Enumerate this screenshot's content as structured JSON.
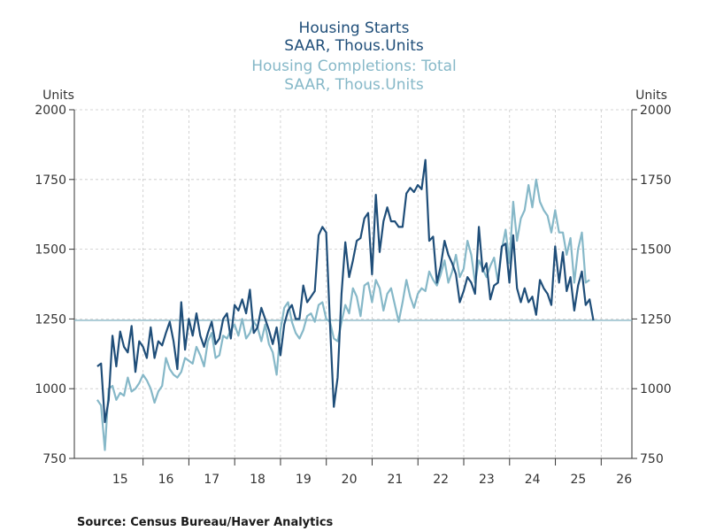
{
  "chart_data": {
    "type": "line",
    "title": "Housing Starts",
    "subtitle": "SAAR, Thous.Units",
    "title2": "Housing Completions: Total",
    "subtitle2": "SAAR, Thous.Units",
    "ylabel_left": "Units",
    "ylabel_right": "Units",
    "ylim": [
      750,
      2000
    ],
    "yticks": [
      750,
      1000,
      1250,
      1500,
      1750,
      2000
    ],
    "xlim": [
      2014.5,
      2026.67
    ],
    "xtick_labels": [
      "15",
      "16",
      "17",
      "18",
      "19",
      "20",
      "21",
      "22",
      "23",
      "24",
      "25",
      "26"
    ],
    "reference_line": 1245,
    "grid": true,
    "source": "Source:  Census Bureau/Haver Analytics",
    "colors": {
      "starts": "#1f4e79",
      "completions": "#86b8c8",
      "reference": "#7fb0c0"
    },
    "series": [
      {
        "name": "Housing Starts",
        "color": "#1f4e79",
        "start": 2015.0,
        "step": 0.0833,
        "values": [
          1080,
          1090,
          880,
          960,
          1190,
          1080,
          1205,
          1150,
          1130,
          1225,
          1060,
          1170,
          1150,
          1110,
          1220,
          1110,
          1170,
          1155,
          1200,
          1240,
          1170,
          1070,
          1310,
          1140,
          1250,
          1190,
          1270,
          1190,
          1150,
          1200,
          1240,
          1160,
          1180,
          1250,
          1270,
          1180,
          1300,
          1280,
          1320,
          1270,
          1355,
          1200,
          1220,
          1290,
          1250,
          1210,
          1160,
          1220,
          1120,
          1230,
          1280,
          1300,
          1250,
          1250,
          1370,
          1310,
          1330,
          1350,
          1550,
          1580,
          1560,
          1230,
          935,
          1040,
          1340,
          1525,
          1400,
          1460,
          1530,
          1540,
          1610,
          1630,
          1410,
          1695,
          1490,
          1600,
          1650,
          1600,
          1600,
          1580,
          1580,
          1700,
          1720,
          1705,
          1730,
          1715,
          1820,
          1530,
          1545,
          1380,
          1440,
          1530,
          1480,
          1450,
          1410,
          1310,
          1350,
          1400,
          1380,
          1340,
          1580,
          1420,
          1450,
          1320,
          1370,
          1380,
          1510,
          1520,
          1380,
          1550,
          1360,
          1310,
          1360,
          1310,
          1330,
          1265,
          1390,
          1360,
          1340,
          1300,
          1510,
          1380,
          1490,
          1350,
          1400,
          1280,
          1370,
          1420,
          1300,
          1320,
          1245
        ]
      },
      {
        "name": "Housing Completions: Total",
        "color": "#86b8c8",
        "start": 2015.0,
        "step": 0.0833,
        "values": [
          960,
          940,
          780,
          1000,
          1010,
          960,
          985,
          975,
          1040,
          990,
          1000,
          1020,
          1050,
          1030,
          1000,
          950,
          990,
          1010,
          1110,
          1070,
          1050,
          1040,
          1060,
          1110,
          1100,
          1090,
          1150,
          1120,
          1080,
          1170,
          1200,
          1110,
          1120,
          1190,
          1180,
          1210,
          1230,
          1190,
          1250,
          1180,
          1200,
          1240,
          1220,
          1170,
          1230,
          1160,
          1130,
          1050,
          1210,
          1290,
          1310,
          1240,
          1200,
          1180,
          1210,
          1260,
          1270,
          1240,
          1300,
          1310,
          1250,
          1240,
          1180,
          1170,
          1240,
          1300,
          1270,
          1360,
          1330,
          1260,
          1370,
          1380,
          1310,
          1390,
          1360,
          1280,
          1340,
          1360,
          1300,
          1240,
          1310,
          1390,
          1330,
          1290,
          1340,
          1360,
          1350,
          1420,
          1390,
          1370,
          1410,
          1460,
          1380,
          1420,
          1480,
          1400,
          1430,
          1530,
          1480,
          1380,
          1460,
          1430,
          1400,
          1440,
          1470,
          1380,
          1500,
          1570,
          1450,
          1670,
          1530,
          1610,
          1640,
          1730,
          1650,
          1750,
          1670,
          1640,
          1620,
          1560,
          1640,
          1560,
          1560,
          1480,
          1540,
          1380,
          1500,
          1560,
          1380,
          1390
        ]
      }
    ]
  }
}
